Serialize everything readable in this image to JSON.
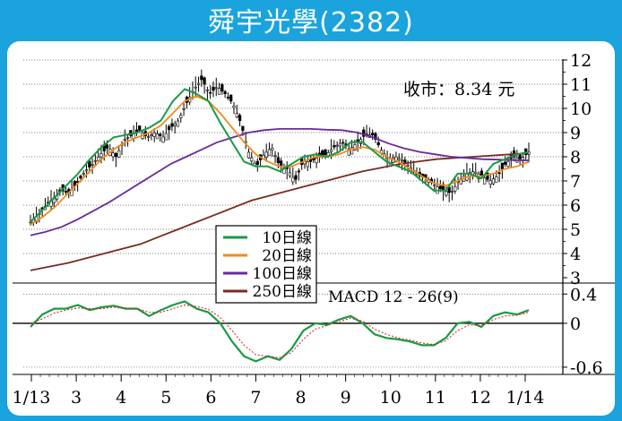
{
  "title": "舜宇光學(2382)",
  "close_label": "收市：8.34 元",
  "macd_label": "MACD 12 - 26(9)",
  "colors": {
    "frame": "#1aa3dd",
    "ma10": "#1a9a44",
    "ma20": "#f08a1e",
    "ma100": "#6a2a9a",
    "ma250": "#7a2a22",
    "macd": "#1a9a44",
    "signal": "#d01a1a"
  },
  "chart_data": [
    {
      "type": "candlestick",
      "title": "舜宇光學(2382)",
      "annotation": "收市：8.34 元",
      "y_ticks": [
        3,
        4,
        5,
        6,
        7,
        8,
        9,
        10,
        11,
        12
      ],
      "x_ticks": [
        "1/13",
        "3",
        "4",
        "5",
        "6",
        "7",
        "8",
        "9",
        "10",
        "11",
        "12",
        "1/14"
      ],
      "ylim": [
        3,
        12
      ],
      "grid": true,
      "legend_position": "bottom-center",
      "close": 8.34,
      "series": [
        {
          "name": "10日線",
          "color": "#1a9a44",
          "values": [
            5.3,
            5.8,
            6.3,
            6.8,
            7.3,
            7.9,
            8.4,
            8.8,
            8.9,
            9.0,
            9.2,
            9.5,
            10.3,
            10.8,
            10.6,
            10.3,
            9.4,
            8.6,
            7.8,
            7.6,
            7.6,
            7.4,
            7.7,
            8.0,
            8.1,
            8.0,
            8.2,
            8.6,
            8.6,
            8.2,
            7.8,
            7.6,
            7.4,
            7.0,
            6.6,
            6.6,
            7.3,
            7.3,
            7.1,
            7.7,
            7.9,
            8.1,
            8.2
          ]
        },
        {
          "name": "20日線",
          "color": "#f08a1e",
          "values": [
            5.2,
            5.5,
            5.9,
            6.4,
            6.9,
            7.4,
            7.9,
            8.3,
            8.6,
            8.8,
            9.0,
            9.3,
            9.8,
            10.3,
            10.5,
            10.3,
            9.8,
            9.2,
            8.6,
            8.1,
            7.8,
            7.6,
            7.6,
            7.8,
            8.0,
            8.0,
            8.1,
            8.3,
            8.4,
            8.3,
            8.0,
            7.8,
            7.5,
            7.2,
            6.9,
            6.8,
            7.0,
            7.2,
            7.2,
            7.3,
            7.5,
            7.6,
            7.8
          ]
        },
        {
          "name": "100日線",
          "color": "#6a2a9a",
          "values": [
            4.75,
            4.9,
            5.1,
            5.4,
            5.75,
            6.1,
            6.5,
            6.9,
            7.3,
            7.7,
            8.0,
            8.3,
            8.6,
            8.8,
            9.0,
            9.1,
            9.15,
            9.15,
            9.15,
            9.12,
            9.1,
            9.0,
            8.8,
            8.55,
            8.35,
            8.2,
            8.1,
            8.0,
            7.95,
            7.9,
            7.88,
            7.86,
            7.85
          ]
        },
        {
          "name": "250日線",
          "color": "#7a2a22",
          "values": [
            3.3,
            3.45,
            3.6,
            3.8,
            4.0,
            4.2,
            4.4,
            4.7,
            5.0,
            5.3,
            5.6,
            5.9,
            6.2,
            6.4,
            6.6,
            6.8,
            7.0,
            7.2,
            7.4,
            7.55,
            7.7,
            7.8,
            7.9,
            7.95,
            8.0,
            8.05,
            8.1,
            8.15
          ]
        }
      ],
      "candles": [
        5.3,
        5.6,
        6.0,
        6.3,
        6.6,
        6.5,
        6.9,
        7.4,
        7.7,
        8.1,
        8.4,
        8.0,
        8.7,
        8.9,
        9.1,
        8.8,
        9.0,
        8.8,
        9.2,
        9.5,
        10.2,
        10.8,
        11.2,
        10.6,
        10.9,
        10.6,
        10.2,
        9.4,
        8.2,
        7.6,
        8.1,
        8.4,
        7.6,
        7.5,
        7.0,
        7.8,
        7.8,
        8.0,
        8.1,
        8.4,
        8.6,
        8.3,
        8.6,
        8.9,
        8.9,
        8.3,
        7.9,
        8.0,
        7.8,
        7.5,
        7.2,
        7.1,
        6.8,
        6.6,
        6.5,
        7.0,
        7.3,
        7.4,
        7.2,
        7.0,
        7.2,
        7.7,
        8.0,
        7.9,
        8.2
      ]
    },
    {
      "type": "line",
      "title": "MACD 12 - 26(9)",
      "y_ticks": [
        0.4,
        0,
        -0.6
      ],
      "ylim": [
        -0.65,
        0.55
      ],
      "series": [
        {
          "name": "MACD",
          "color": "#1a9a44",
          "values": [
            -0.05,
            0.12,
            0.2,
            0.2,
            0.25,
            0.18,
            0.22,
            0.24,
            0.2,
            0.2,
            0.1,
            0.18,
            0.25,
            0.3,
            0.2,
            0.15,
            0.0,
            -0.25,
            -0.45,
            -0.52,
            -0.45,
            -0.5,
            -0.35,
            -0.1,
            0.0,
            -0.02,
            0.05,
            0.1,
            0.0,
            -0.15,
            -0.2,
            -0.22,
            -0.25,
            -0.3,
            -0.3,
            -0.2,
            0.0,
            0.02,
            -0.05,
            0.1,
            0.15,
            0.12,
            0.18
          ]
        },
        {
          "name": "Signal",
          "color": "#d01a1a",
          "values": [
            0.0,
            0.06,
            0.14,
            0.18,
            0.21,
            0.2,
            0.2,
            0.22,
            0.21,
            0.2,
            0.15,
            0.15,
            0.2,
            0.25,
            0.23,
            0.19,
            0.08,
            -0.1,
            -0.3,
            -0.43,
            -0.45,
            -0.47,
            -0.4,
            -0.22,
            -0.08,
            -0.03,
            0.02,
            0.07,
            0.03,
            -0.08,
            -0.15,
            -0.2,
            -0.23,
            -0.27,
            -0.29,
            -0.24,
            -0.1,
            -0.02,
            -0.03,
            0.05,
            0.1,
            0.11,
            0.15
          ]
        }
      ]
    }
  ]
}
